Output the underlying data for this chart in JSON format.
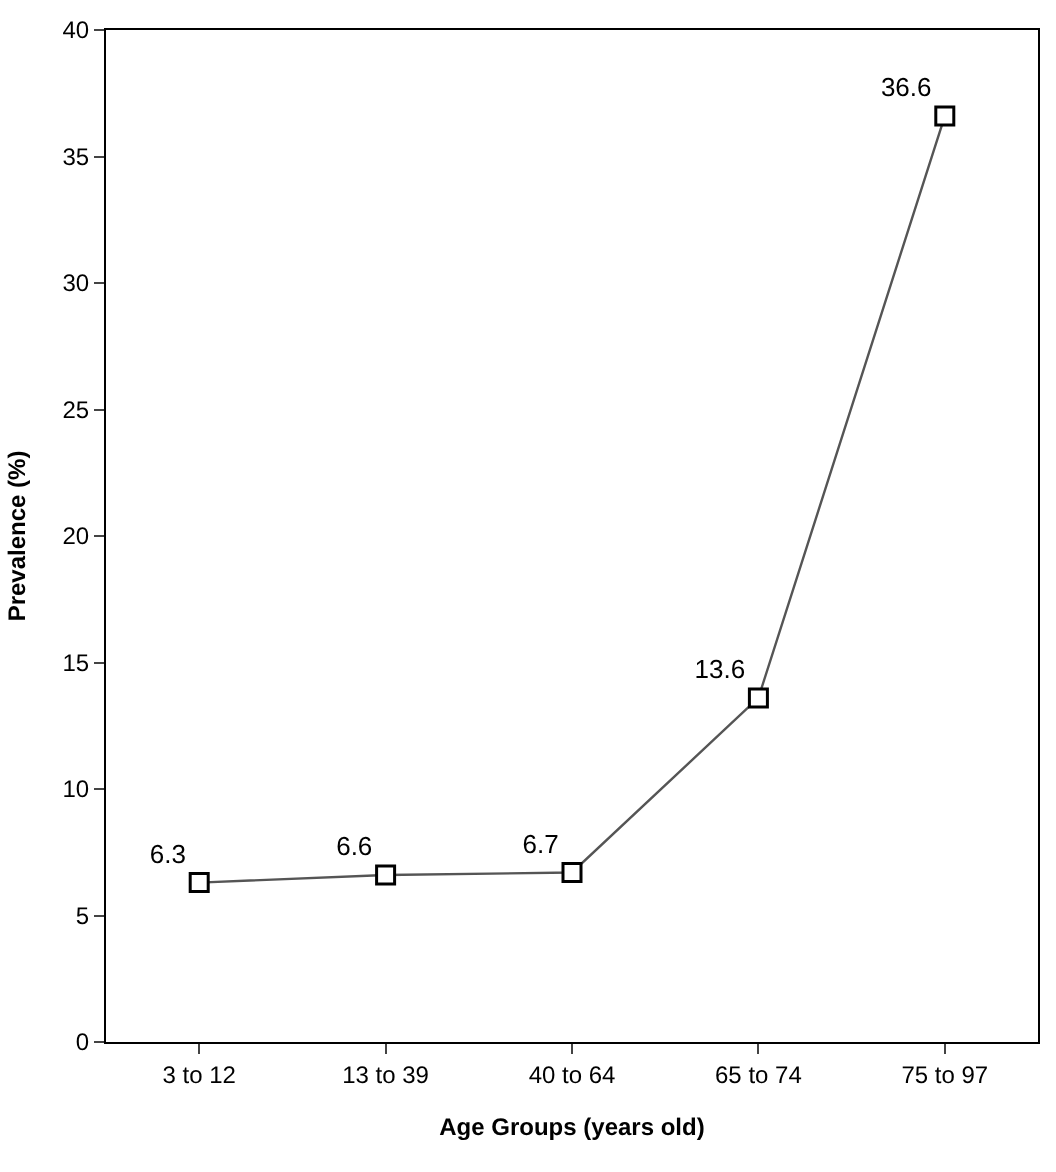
{
  "chart_data": {
    "type": "line",
    "xlabel": "Age Groups (years old)",
    "ylabel": "Prevalence (%)",
    "categories": [
      "3 to 12",
      "13 to 39",
      "40 to 64",
      "65 to 74",
      "75 to 97"
    ],
    "series": [
      {
        "color": "#555555",
        "values": [
          6.3,
          6.6,
          6.7,
          13.6,
          36.6
        ]
      }
    ],
    "ylim": [
      0,
      40
    ],
    "yticks": [
      0,
      5,
      10,
      15,
      20,
      25,
      30,
      35,
      40
    ],
    "data_labels": true,
    "marker": "square"
  }
}
